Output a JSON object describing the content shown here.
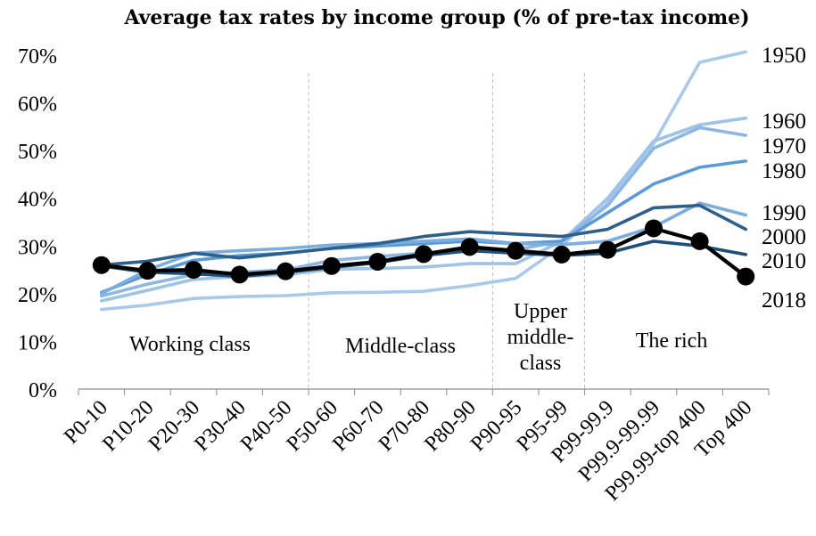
{
  "chart_data": {
    "type": "line",
    "title": "Average tax rates by income group (% of pre-tax income)",
    "xlabel": "",
    "ylabel": "",
    "ylim": [
      0,
      70
    ],
    "yticks": [
      "0%",
      "10%",
      "20%",
      "30%",
      "40%",
      "50%",
      "60%",
      "70%"
    ],
    "categories": [
      "P0-10",
      "P10-20",
      "P20-30",
      "P30-40",
      "P40-50",
      "P50-60",
      "P60-70",
      "P70-80",
      "P80-90",
      "P90-95",
      "P95-99",
      "P99-99.9",
      "P99.9-99.99",
      "P99.99-top 400",
      "Top 400"
    ],
    "regions": [
      {
        "lines": [
          "Working class"
        ]
      },
      {
        "lines": [
          "Middle-class"
        ]
      },
      {
        "lines": [
          "Upper",
          "middle-",
          "class"
        ]
      },
      {
        "lines": [
          "The rich"
        ]
      }
    ],
    "series": [
      {
        "name": "1950",
        "color": "#a9c9eb",
        "values": [
          16.7,
          17.6,
          19.0,
          19.4,
          19.6,
          20.2,
          20.3,
          20.5,
          21.7,
          23.2,
          30.0,
          39.0,
          51.5,
          68.5,
          70.7
        ]
      },
      {
        "name": "1960",
        "color": "#9dc3e6",
        "values": [
          18.5,
          20.7,
          23.0,
          23.6,
          24.0,
          25.1,
          25.3,
          25.6,
          26.3,
          26.3,
          31.0,
          40.0,
          52.0,
          55.4,
          56.8
        ]
      },
      {
        "name": "1970",
        "color": "#8db6e2",
        "values": [
          19.5,
          22.0,
          24.0,
          24.5,
          25.0,
          27.0,
          27.8,
          28.5,
          29.0,
          29.2,
          31.0,
          38.5,
          50.5,
          54.8,
          53.2
        ]
      },
      {
        "name": "1980",
        "color": "#5b9bd5",
        "values": [
          20.3,
          24.0,
          27.0,
          28.0,
          28.5,
          29.5,
          30.0,
          30.5,
          31.0,
          30.5,
          31.0,
          37.0,
          43.0,
          46.5,
          47.8
        ]
      },
      {
        "name": "1990",
        "color": "#7badde",
        "values": [
          20.0,
          25.0,
          28.5,
          29.0,
          29.5,
          30.2,
          30.5,
          31.0,
          31.5,
          30.5,
          30.3,
          31.0,
          34.0,
          39.0,
          36.5
        ]
      },
      {
        "name": "2000",
        "color": "#2e5f8a",
        "values": [
          26.0,
          26.8,
          28.5,
          27.5,
          28.5,
          29.5,
          30.5,
          32.0,
          33.0,
          32.5,
          32.0,
          33.5,
          38.0,
          38.5,
          33.5
        ]
      },
      {
        "name": "2010",
        "color": "#1f4e79",
        "values": [
          25.8,
          24.5,
          24.2,
          23.6,
          24.5,
          25.5,
          26.5,
          28.0,
          29.0,
          28.5,
          28.0,
          28.5,
          31.0,
          30.0,
          28.2
        ]
      },
      {
        "name": "2018",
        "color": "#000000",
        "values": [
          26.0,
          24.8,
          25.0,
          24.0,
          24.7,
          25.8,
          26.7,
          28.3,
          29.8,
          29.0,
          28.2,
          29.2,
          33.7,
          31.0,
          23.6
        ]
      }
    ],
    "grid": false,
    "legend": "right"
  }
}
